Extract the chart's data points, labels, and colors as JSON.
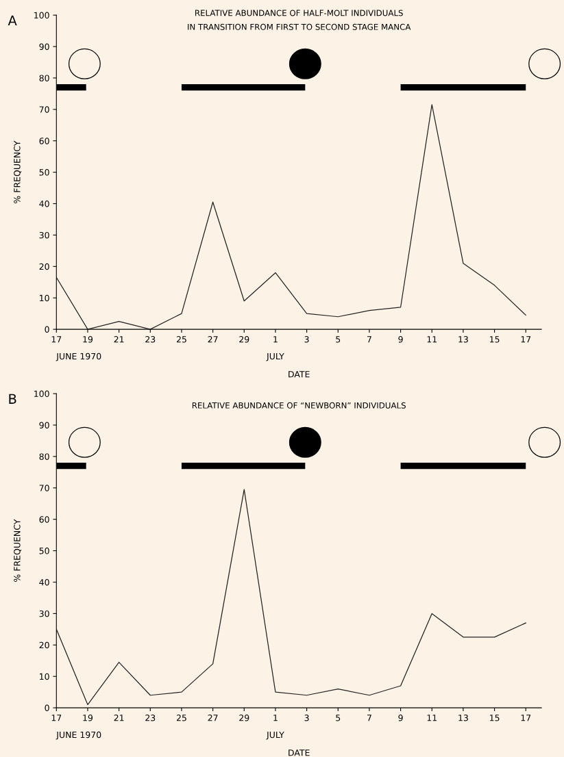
{
  "chart_data": [
    {
      "type": "line",
      "title": "RELATIVE ABUNDANCE OF HALF-MOLT INDIVIDUALS\nIN TRANSITION FROM FIRST TO SECOND STAGE MANCA",
      "xlabel": "DATE",
      "ylabel": "% FREQUENCY",
      "categories": [
        "17",
        "19",
        "21",
        "23",
        "25",
        "27",
        "29",
        "1",
        "3",
        "5",
        "7",
        "9",
        "11",
        "13",
        "15",
        "17"
      ],
      "series": [
        {
          "color": "#222222",
          "values": [
            16.5,
            0,
            2.5,
            0,
            5,
            40.5,
            9,
            18,
            5,
            4,
            6,
            7,
            71.5,
            21,
            14,
            4.5
          ]
        }
      ],
      "ylim": [
        0,
        100
      ],
      "yticks": [
        0,
        10,
        20,
        30,
        40,
        50,
        60,
        70,
        80,
        90,
        100
      ],
      "grid": false,
      "marker": "none",
      "line_style": "solid",
      "annotations": [
        "JUNE 1970",
        "JULY",
        "A"
      ]
    },
    {
      "type": "line",
      "title": "RELATIVE ABUNDANCE OF “NEWBORN” INDIVIDUALS",
      "xlabel": "DATE",
      "ylabel": "% FREQUENCY",
      "categories": [
        "17",
        "19",
        "21",
        "23",
        "25",
        "27",
        "29",
        "1",
        "3",
        "5",
        "7",
        "9",
        "11",
        "13",
        "15",
        "17"
      ],
      "series": [
        {
          "color": "#222222",
          "values": [
            25,
            1,
            14.5,
            4,
            5,
            14,
            69.5,
            5,
            4,
            6,
            4,
            7,
            30,
            22.5,
            22.5,
            27
          ]
        }
      ],
      "ylim": [
        0,
        100
      ],
      "yticks": [
        0,
        10,
        20,
        30,
        40,
        50,
        60,
        70,
        80,
        90,
        100
      ],
      "grid": false,
      "marker": "none",
      "line_style": "solid",
      "annotations": [
        "JUNE 1970",
        "JULY",
        "B"
      ]
    }
  ]
}
